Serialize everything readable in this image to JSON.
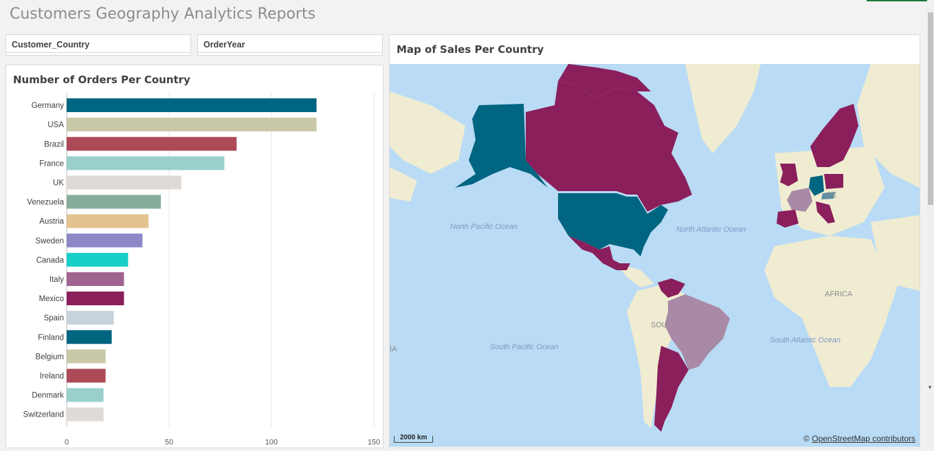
{
  "app": {
    "title": "Customers Geography Analytics Reports"
  },
  "filters": [
    {
      "label": "Customer_Country"
    },
    {
      "label": "OrderYear"
    }
  ],
  "bar_panel": {
    "title": "Number of Orders Per Country"
  },
  "map_panel": {
    "title": "Map of Sales Per Country",
    "ocean_labels": [
      "North Pacific Ocean",
      "North Atlantic Ocean",
      "South Pacific Ocean",
      "South Atlantic Ocean"
    ],
    "region_labels": [
      "AFRICA",
      "SOU",
      "PE",
      "IA"
    ],
    "scalebar": "2000 km",
    "attribution_prefix": "©",
    "attribution_link": "OpenStreetMap contributors",
    "colors": {
      "water": "#b9dbf5",
      "land": "#f0ecd2",
      "teal": "#006580",
      "purple": "#8a1f5c",
      "mauve": "#b08aa8",
      "lavender": "#a88aa6"
    }
  },
  "chart_data": {
    "type": "bar",
    "orientation": "horizontal",
    "title": "Number of Orders Per Country",
    "categories": [
      "Germany",
      "USA",
      "Brazil",
      "France",
      "UK",
      "Venezuela",
      "Austria",
      "Sweden",
      "Canada",
      "Italy",
      "Mexico",
      "Spain",
      "Finland",
      "Belgium",
      "Ireland",
      "Denmark",
      "Switzerland"
    ],
    "values": [
      122,
      122,
      83,
      77,
      56,
      46,
      40,
      37,
      30,
      28,
      28,
      23,
      22,
      19,
      19,
      18,
      18
    ],
    "colors": [
      "#006580",
      "#c9c8a8",
      "#ad4a58",
      "#9acfcc",
      "#e0dad7",
      "#86ad99",
      "#e3c38f",
      "#8e88c8",
      "#18cfc6",
      "#a06490",
      "#8a1f5c",
      "#c8d2dc",
      "#006580",
      "#c9c8a8",
      "#ad4a58",
      "#9acfcc",
      "#e0dad7"
    ],
    "xlim": [
      0,
      150
    ],
    "xticks": [
      0,
      50,
      100,
      150
    ],
    "grid": true
  }
}
